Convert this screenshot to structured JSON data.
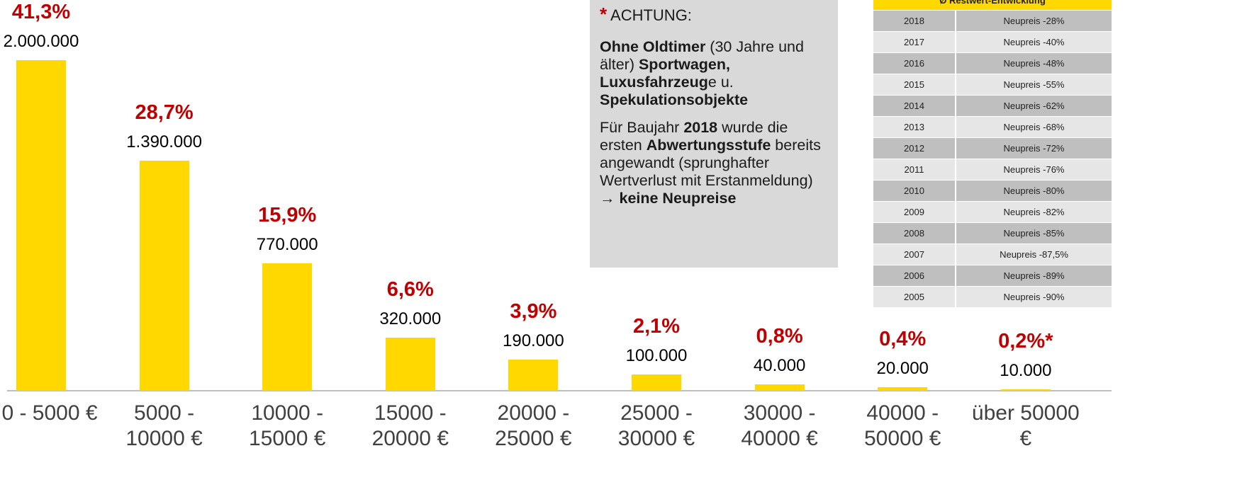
{
  "chart_data": {
    "type": "bar",
    "categories": [
      "0 - 5000 €",
      "5000 - 10000 €",
      "10000 - 15000 €",
      "15000 - 20000 €",
      "20000 - 25000 €",
      "25000 - 30000 €",
      "30000 - 40000 €",
      "40000 - 50000 €",
      "über 50000 €"
    ],
    "values": [
      2000000,
      1390000,
      770000,
      320000,
      190000,
      100000,
      40000,
      20000,
      10000
    ],
    "value_labels": [
      "2.000.000",
      "1.390.000",
      "770.000",
      "320.000",
      "190.000",
      "100.000",
      "40.000",
      "20.000",
      "10.000"
    ],
    "annotations": [
      "41,3%",
      "28,7%",
      "15,9%",
      "6,6%",
      "3,9%",
      "2,1%",
      "0,8%",
      "0,4%",
      "0,2%*"
    ],
    "color": "#ffd800",
    "annotation_color": "#c00000"
  },
  "note": {
    "marker": "*",
    "title": "ACHTUNG:",
    "paragraphs": [
      [
        {
          "text": "Ohne Oldtimer",
          "bold": true
        },
        {
          "text": " (30 Jahre und älter) "
        },
        {
          "text": "Sportwagen, Luxusfahrzeug",
          "bold": true
        },
        {
          "text": "e u. "
        },
        {
          "text": "Spekulationsobjekte",
          "bold": true
        }
      ],
      [
        {
          "text": "Für Baujahr "
        },
        {
          "text": "2018",
          "bold": true
        },
        {
          "text": " wurde die ersten "
        },
        {
          "text": "Abwertungsstufe",
          "bold": true
        },
        {
          "text": " bereits angewandt (sprunghafter Wertverlust mit Erstanmeldung) → "
        },
        {
          "text": "keine Neupreise",
          "bold": true
        }
      ]
    ]
  },
  "table": {
    "title": "Ø Restwert-Entwicklung",
    "rows": [
      [
        "2018",
        "Neupreis -28%"
      ],
      [
        "2017",
        "Neupreis -40%"
      ],
      [
        "2016",
        "Neupreis -48%"
      ],
      [
        "2015",
        "Neupreis -55%"
      ],
      [
        "2014",
        "Neupreis -62%"
      ],
      [
        "2013",
        "Neupreis -68%"
      ],
      [
        "2012",
        "Neupreis -72%"
      ],
      [
        "2011",
        "Neupreis -76%"
      ],
      [
        "2010",
        "Neupreis -80%"
      ],
      [
        "2009",
        "Neupreis -82%"
      ],
      [
        "2008",
        "Neupreis -85%"
      ],
      [
        "2007",
        "Neupreis -87,5%"
      ],
      [
        "2006",
        "Neupreis -89%"
      ],
      [
        "2005",
        "Neupreis -90%"
      ]
    ]
  }
}
